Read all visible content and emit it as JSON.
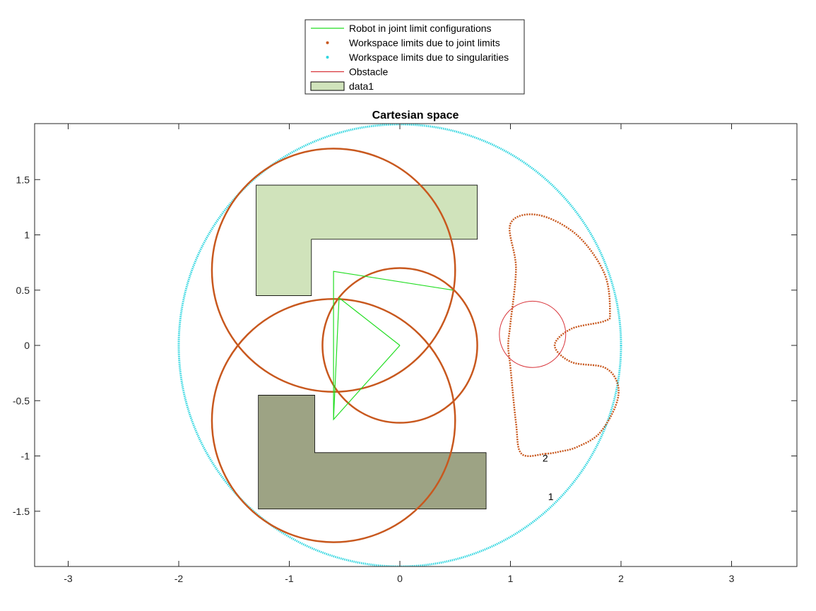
{
  "chart_data": {
    "type": "line",
    "title": "Cartesian space",
    "xlabel": "",
    "ylabel": "",
    "xlim": [
      -3.3,
      3.6
    ],
    "ylim": [
      -2.0,
      2.0
    ],
    "xticks": [
      -3,
      -2,
      -1,
      0,
      1,
      2,
      3
    ],
    "yticks": [
      1.5,
      1,
      0.5,
      0,
      -0.5,
      -1,
      -1.5
    ],
    "xtick_labels": [
      "-3",
      "-2",
      "-1",
      "0",
      "1",
      "2",
      "3"
    ],
    "ytick_labels": [
      "1.5",
      "1",
      "0.5",
      "0",
      "-0.5",
      "-1",
      "-1.5"
    ],
    "grid": false,
    "legend_position": "top-center, outside plot",
    "legend": [
      {
        "label": "Robot in joint limit configurations",
        "kind": "line",
        "color": "#22dd22"
      },
      {
        "label": "Workspace limits due to joint limits",
        "kind": "marker",
        "color": "#c8581e"
      },
      {
        "label": "Workspace limits due to singularities",
        "kind": "marker",
        "color": "#30d6e0"
      },
      {
        "label": "Obstacle",
        "kind": "line",
        "color": "#d8343a"
      },
      {
        "label": "data1",
        "kind": "patch",
        "color": "#d0e3bb"
      }
    ],
    "series": [
      {
        "name": "Robot in joint limit configurations",
        "color": "#22dd22",
        "segments": [
          [
            [
              0,
              0
            ],
            [
              -0.6,
              -0.67
            ],
            [
              -0.55,
              0.43
            ],
            [
              0.0,
              0.0
            ]
          ],
          [
            [
              -0.6,
              -0.67
            ],
            [
              -0.6,
              0.67
            ],
            [
              0.48,
              0.5
            ]
          ]
        ]
      },
      {
        "name": "Workspace limits due to joint limits",
        "color": "#c8581e",
        "circles": [
          {
            "cx": 0,
            "cy": 0,
            "r": 0.7
          },
          {
            "cx": -0.6,
            "cy": 0.68,
            "r": 1.1
          },
          {
            "cx": -0.6,
            "cy": -0.68,
            "r": 1.1
          }
        ],
        "curve": [
          [
            1.32,
            -0.98
          ],
          [
            1.1,
            -0.98
          ],
          [
            1.05,
            -0.7
          ],
          [
            1.0,
            -0.2
          ],
          [
            0.98,
            0.0
          ],
          [
            1.0,
            0.2
          ],
          [
            1.05,
            0.7
          ],
          [
            1.0,
            1.1
          ],
          [
            1.25,
            1.18
          ],
          [
            1.6,
            1.0
          ],
          [
            1.85,
            0.65
          ],
          [
            1.9,
            0.3
          ],
          [
            1.85,
            0.22
          ],
          [
            1.55,
            0.15
          ],
          [
            1.4,
            0.0
          ],
          [
            1.55,
            -0.15
          ],
          [
            1.85,
            -0.2
          ],
          [
            1.97,
            -0.35
          ],
          [
            1.95,
            -0.55
          ],
          [
            1.8,
            -0.8
          ],
          [
            1.6,
            -0.92
          ],
          [
            1.45,
            -0.96
          ],
          [
            1.32,
            -0.98
          ]
        ]
      },
      {
        "name": "Workspace limits due to singularities",
        "color": "#30d6e0",
        "circle": {
          "cx": 0,
          "cy": 0,
          "r": 2.0
        }
      },
      {
        "name": "Obstacle",
        "color": "#d8343a",
        "circle": {
          "cx": 1.2,
          "cy": 0.1,
          "r": 0.3
        }
      }
    ],
    "patches": [
      {
        "name": "data1",
        "color": "#d0e3bb",
        "vertices": [
          [
            -1.3,
            1.45
          ],
          [
            0.7,
            1.45
          ],
          [
            0.7,
            0.96
          ],
          [
            -0.8,
            0.96
          ],
          [
            -0.8,
            0.45
          ],
          [
            -1.3,
            0.45
          ]
        ]
      },
      {
        "name": "",
        "color": "#9da384",
        "vertices": [
          [
            -1.28,
            -0.45
          ],
          [
            -0.77,
            -0.45
          ],
          [
            -0.77,
            -0.97
          ],
          [
            0.78,
            -0.97
          ],
          [
            0.78,
            -1.48
          ],
          [
            -1.28,
            -1.48
          ]
        ]
      }
    ],
    "annotations": [
      {
        "text": "2",
        "x": 1.29,
        "y": -1.05
      },
      {
        "text": "1",
        "x": 1.34,
        "y": -1.4
      }
    ]
  }
}
